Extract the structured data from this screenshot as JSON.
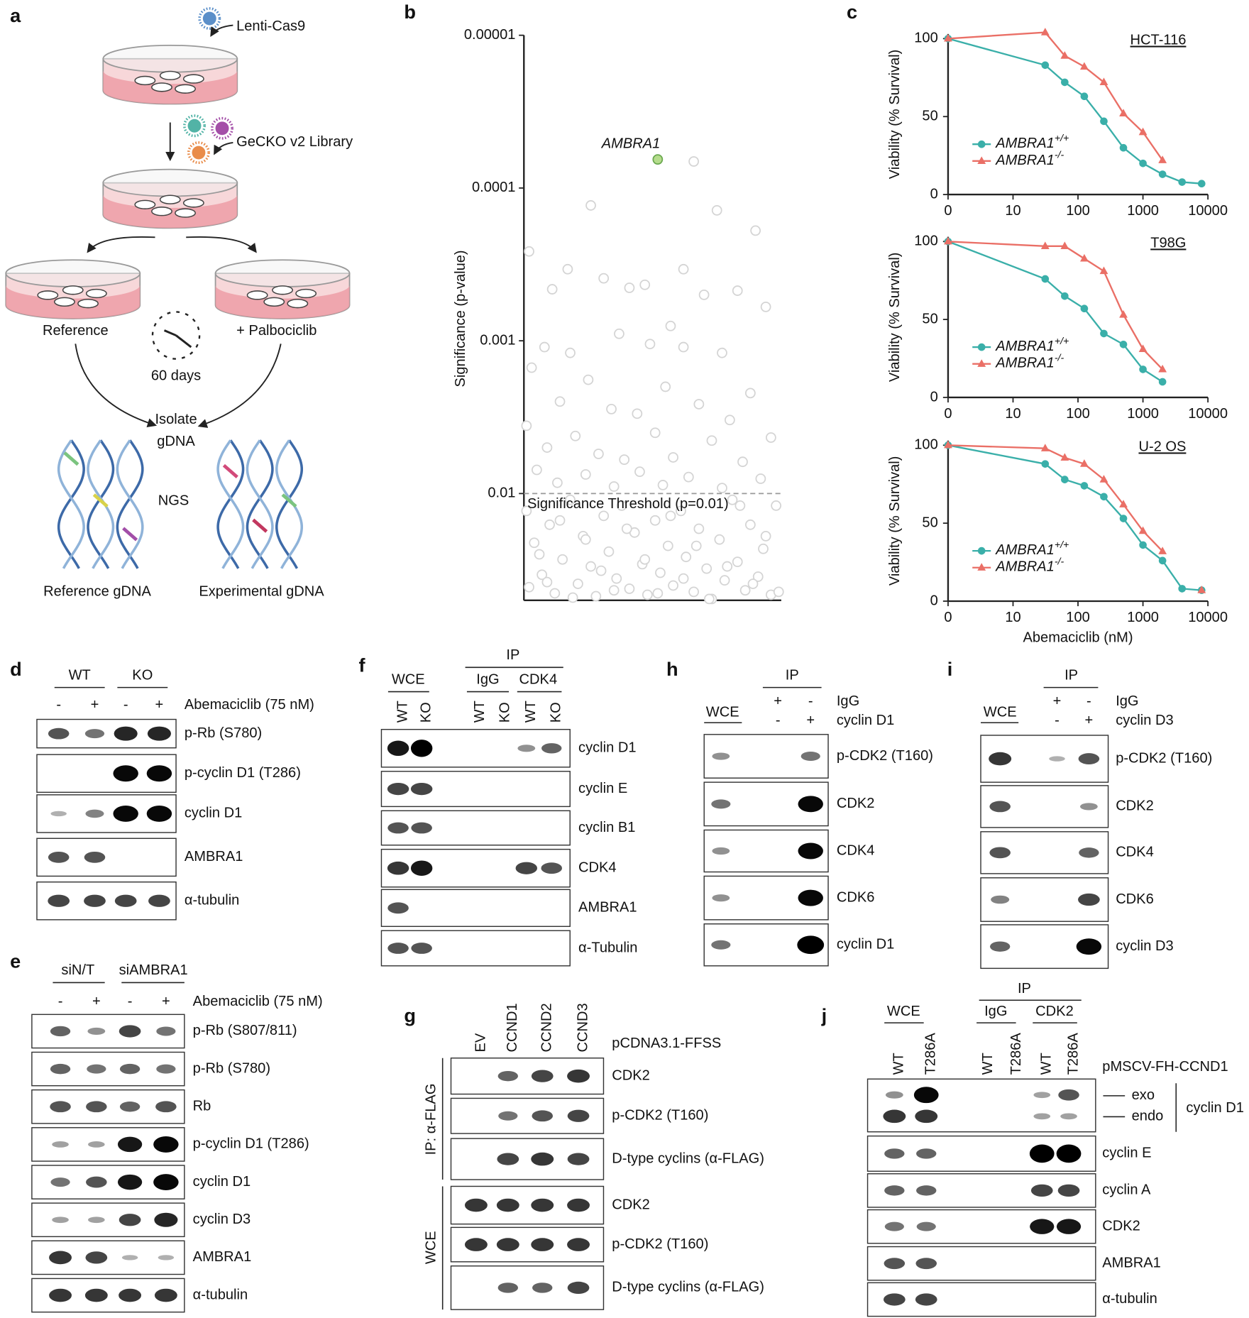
{
  "chart_data": [
    {
      "type": "scatter",
      "ylabel": "Significance (p-value)",
      "yscale": "log",
      "ylim": [
        0.05,
        1e-05
      ],
      "yticks": [
        1e-05,
        0.0001,
        0.001,
        0.01
      ],
      "xlim": [
        0,
        100
      ],
      "color": "#d4d4d4",
      "threshold": {
        "value": 0.01,
        "label": "Significance Threshold (p=0.01)"
      },
      "highlight": {
        "name": "AMBRA1",
        "x": 52,
        "y": 6.5e-05,
        "color": "#b5dc8c"
      },
      "x": [
        66,
        26,
        75,
        90,
        2,
        17,
        62,
        31,
        47,
        11,
        41,
        83,
        70,
        94,
        57,
        37,
        8,
        18,
        49,
        62,
        77,
        3,
        25,
        55,
        88,
        14,
        34,
        44,
        68,
        80,
        1,
        20,
        51,
        73,
        96,
        9,
        29,
        39,
        58,
        85,
        5,
        24,
        45,
        64,
        92,
        13,
        35,
        54,
        77,
        1,
        4,
        7,
        10,
        12,
        15,
        18,
        21,
        23,
        26,
        28,
        31,
        33,
        36,
        38,
        41,
        43,
        46,
        48,
        51,
        53,
        56,
        58,
        61,
        63,
        66,
        68,
        71,
        73,
        76,
        78,
        81,
        83,
        86,
        88,
        91,
        93,
        96,
        98,
        2,
        6,
        9,
        14,
        19,
        24,
        30,
        35,
        40,
        47,
        52,
        57,
        62,
        67,
        72,
        79,
        84,
        89,
        94,
        99
      ],
      "values": [
        6.7e-05,
        0.00013,
        0.00014,
        0.00019,
        0.00026,
        0.00034,
        0.00034,
        0.00039,
        0.00043,
        0.00046,
        0.00045,
        0.00047,
        0.0005,
        0.0006,
        0.0008,
        0.0009,
        0.0011,
        0.0012,
        0.00105,
        0.0011,
        0.0012,
        0.0015,
        0.0018,
        0.002,
        0.0022,
        0.0025,
        0.0028,
        0.003,
        0.0026,
        0.0033,
        0.0036,
        0.0042,
        0.004,
        0.0045,
        0.0043,
        0.005,
        0.0055,
        0.006,
        0.0058,
        0.0062,
        0.007,
        0.0075,
        0.0072,
        0.0078,
        0.008,
        0.0085,
        0.009,
        0.0088,
        0.0092,
        0.013,
        0.021,
        0.034,
        0.016,
        0.045,
        0.027,
        0.011,
        0.039,
        0.019,
        0.03,
        0.047,
        0.014,
        0.024,
        0.036,
        0.012,
        0.042,
        0.018,
        0.029,
        0.046,
        0.015,
        0.033,
        0.022,
        0.04,
        0.013,
        0.026,
        0.044,
        0.017,
        0.031,
        0.049,
        0.02,
        0.037,
        0.011,
        0.028,
        0.043,
        0.016,
        0.035,
        0.023,
        0.046,
        0.012,
        0.041,
        0.025,
        0.038,
        0.015,
        0.048,
        0.02,
        0.032,
        0.043,
        0.017,
        0.027,
        0.045,
        0.014,
        0.036,
        0.022,
        0.049,
        0.03,
        0.012,
        0.039,
        0.019,
        0.044
      ]
    },
    {
      "type": "line",
      "title": "HCT-116",
      "ylabel": "Viability (% Survival)",
      "xscale": "log",
      "xlim": [
        0,
        10000
      ],
      "xticks": [
        0,
        10,
        100,
        1000,
        10000
      ],
      "ylim": [
        0,
        103
      ],
      "yticks": [
        0,
        50,
        100
      ],
      "x": [
        0,
        31.25,
        62.5,
        125,
        250,
        500,
        1000,
        2000,
        4000,
        8000
      ],
      "series": [
        {
          "name": "AMBRA1",
          "superscript": "+/+",
          "color": "#3aafa9",
          "marker": "circle",
          "values": [
            100,
            83,
            72,
            63,
            47,
            30,
            20,
            13,
            8,
            7
          ]
        },
        {
          "name": "AMBRA1",
          "superscript": "-/-",
          "color": "#ea6f66",
          "marker": "triangle",
          "values": [
            100,
            104,
            89,
            82,
            72,
            52,
            40,
            22,
            null,
            null
          ]
        }
      ]
    },
    {
      "type": "line",
      "title": "T98G",
      "ylabel": "Viability (% Survival)",
      "xscale": "log",
      "xlim": [
        0,
        10000
      ],
      "xticks": [
        0,
        10,
        100,
        1000,
        10000
      ],
      "ylim": [
        0,
        103
      ],
      "yticks": [
        0,
        50,
        100
      ],
      "x": [
        0,
        31.25,
        62.5,
        125,
        250,
        500,
        1000,
        2000
      ],
      "series": [
        {
          "name": "AMBRA1",
          "superscript": "+/+",
          "color": "#3aafa9",
          "marker": "circle",
          "values": [
            100,
            76,
            65,
            57,
            41,
            34,
            18,
            10
          ]
        },
        {
          "name": "AMBRA1",
          "superscript": "-/-",
          "color": "#ea6f66",
          "marker": "triangle",
          "values": [
            100,
            97,
            97,
            89,
            81,
            53,
            31,
            18
          ]
        }
      ]
    },
    {
      "type": "line",
      "title": "U-2 OS",
      "ylabel": "Viability (% Survival)",
      "xlabel": "Abemaciclib (nM)",
      "xscale": "log",
      "xlim": [
        0,
        10000
      ],
      "xticks": [
        0,
        10,
        100,
        1000,
        10000
      ],
      "ylim": [
        0,
        103
      ],
      "yticks": [
        0,
        50,
        100
      ],
      "x": [
        0,
        31.25,
        62.5,
        125,
        250,
        500,
        1000,
        2000,
        4000,
        8000
      ],
      "series": [
        {
          "name": "AMBRA1",
          "superscript": "+/+",
          "color": "#3aafa9",
          "marker": "circle",
          "values": [
            100,
            88,
            78,
            74,
            67,
            53,
            36,
            26,
            8,
            7
          ]
        },
        {
          "name": "AMBRA1",
          "superscript": "-/-",
          "color": "#ea6f66",
          "marker": "triangle",
          "values": [
            100,
            98,
            92,
            88,
            78,
            62,
            45,
            32,
            null,
            7
          ]
        }
      ]
    }
  ],
  "panels": {
    "a": {
      "label": "a",
      "virus": "Lenti-Cas9",
      "library": "GeCKO v2 Library",
      "reference": "Reference",
      "treated": "+ Palbociclib",
      "duration": "60 days",
      "isolate": [
        "Isolate",
        "gDNA"
      ],
      "ngs": "NGS",
      "reference_gdna": "Reference gDNA",
      "experimental_gdna": "Experimental gDNA"
    },
    "b": {
      "label": "b"
    },
    "c": {
      "label": "c"
    },
    "d": {
      "label": "d",
      "groups": [
        "WT",
        "KO"
      ],
      "treatment": [
        "-",
        "+",
        "-",
        "+"
      ],
      "treatment_label": "Abemaciclib (75 nM)",
      "rows": [
        "p-Rb (S780)",
        "p-cyclin D1 (T286)",
        "cyclin D1",
        "AMBRA1",
        "α-tubulin"
      ]
    },
    "e": {
      "label": "e",
      "groups": [
        "siN/T",
        "siAMBRA1"
      ],
      "treatment": [
        "-",
        "+",
        "-",
        "+"
      ],
      "treatment_label": "Abemaciclib (75 nM)",
      "rows": [
        "p-Rb (S807/811)",
        "p-Rb (S780)",
        "Rb",
        "p-cyclin D1 (T286)",
        "cyclin D1",
        "cyclin D3",
        "AMBRA1",
        "α-tubulin"
      ]
    },
    "f": {
      "label": "f",
      "ip": "IP",
      "groups": [
        "WCE",
        "IgG",
        "CDK4"
      ],
      "lanes": [
        "WT",
        "KO",
        "WT",
        "KO",
        "WT",
        "KO"
      ],
      "rows": [
        "cyclin D1",
        "cyclin E",
        "cyclin B1",
        "CDK4",
        "AMBRA1",
        "α-Tubulin"
      ]
    },
    "g": {
      "label": "g",
      "lanes": [
        "EV",
        "CCND1",
        "CCND2",
        "CCND3"
      ],
      "construct": "pCDNA3.1-FFSS",
      "sections": [
        "IP: α-FLAG",
        "WCE"
      ],
      "rows": [
        "CDK2",
        "p-CDK2 (T160)",
        "D-type cyclins (α-FLAG)",
        "CDK2",
        "p-CDK2 (T160)",
        "D-type cyclins (α-FLAG)"
      ]
    },
    "h": {
      "label": "h",
      "wce": "WCE",
      "ip": "IP",
      "conditions": [
        {
          "name": "IgG",
          "signs": [
            "+",
            "-"
          ]
        },
        {
          "name": "cyclin D1",
          "signs": [
            "-",
            "+"
          ]
        }
      ],
      "rows": [
        "p-CDK2 (T160)",
        "CDK2",
        "CDK4",
        "CDK6",
        "cyclin D1"
      ]
    },
    "i": {
      "label": "i",
      "wce": "WCE",
      "ip": "IP",
      "conditions": [
        {
          "name": "IgG",
          "signs": [
            "+",
            "-"
          ]
        },
        {
          "name": "cyclin D3",
          "signs": [
            "-",
            "+"
          ]
        }
      ],
      "rows": [
        "p-CDK2 (T160)",
        "CDK2",
        "CDK4",
        "CDK6",
        "cyclin D3"
      ]
    },
    "j": {
      "label": "j",
      "ip": "IP",
      "groups": [
        "WCE",
        "IgG",
        "CDK2"
      ],
      "lanes": [
        "WT",
        "T286A",
        "WT",
        "T286A",
        "WT",
        "T286A"
      ],
      "construct": "pMSCV-FH-CCND1",
      "forms": [
        "exo",
        "endo"
      ],
      "bracket": "cyclin D1",
      "rows": [
        "cyclin E",
        "cyclin A",
        "CDK2",
        "AMBRA1",
        "α-tubulin"
      ]
    }
  }
}
